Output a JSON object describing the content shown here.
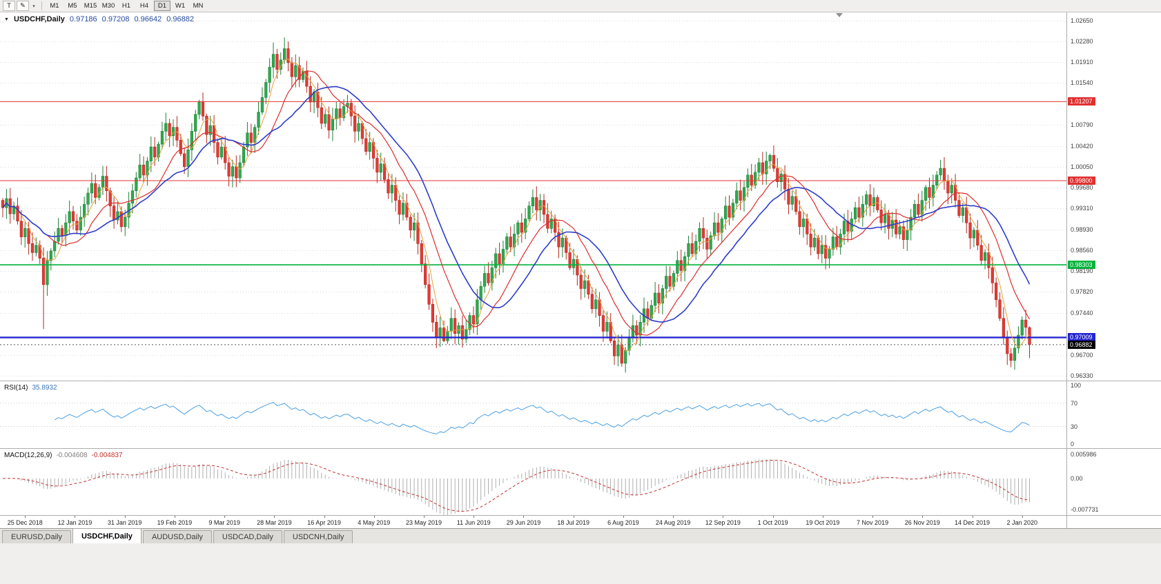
{
  "toolbar": {
    "tools": [
      {
        "glyph": "T",
        "name": "text-tool-button"
      },
      {
        "glyph": "✎",
        "name": "drawing-tools-button"
      },
      {
        "glyph": "▾",
        "name": "tools-dropdown-button"
      }
    ],
    "periods": [
      {
        "label": "M1"
      },
      {
        "label": "M5"
      },
      {
        "label": "M15"
      },
      {
        "label": "M30"
      },
      {
        "label": "H1"
      },
      {
        "label": "H4"
      },
      {
        "label": "D1",
        "active": true
      },
      {
        "label": "W1"
      },
      {
        "label": "MN"
      }
    ]
  },
  "chart": {
    "title": {
      "symbol": "USDCHF,Daily",
      "open": "0.97186",
      "high": "0.97208",
      "low": "0.96642",
      "close": "0.96882",
      "menu_icon": "▼"
    },
    "axis_labels": [
      "1.02650",
      "1.02280",
      "1.01910",
      "1.01540",
      "1.00790",
      "1.00420",
      "1.00050",
      "0.99680",
      "0.99310",
      "0.98930",
      "0.98560",
      "0.98190",
      "0.97820",
      "0.97440",
      "0.96700",
      "0.96330"
    ],
    "levels": [
      {
        "value": 1.01207,
        "label": "1.01207",
        "color": "#e03030",
        "width": 1
      },
      {
        "value": 0.998,
        "label": "0.99800",
        "color": "#e03030",
        "width": 1
      },
      {
        "value": 0.98303,
        "label": "0.98303",
        "color": "#00b43c",
        "width": 1.6
      },
      {
        "value": 0.97009,
        "label": "0.97009",
        "color": "#2525cf",
        "width": 2.4
      }
    ],
    "current_price": {
      "value": 0.96882,
      "label": "0.96882",
      "color": "#000000"
    },
    "moving_averages": [
      {
        "period": 5,
        "color": "#e8a23a",
        "width": 1
      },
      {
        "period": 13,
        "color": "#dd2c2c",
        "width": 1.2
      },
      {
        "period": 21,
        "color": "#2b3cc9",
        "width": 1.6
      }
    ],
    "indicators": {
      "rsi": {
        "label": "RSI(14)",
        "value": "35.8932",
        "period": 14,
        "levels_axis": [
          "100",
          "70",
          "30",
          "0"
        ],
        "grid": [
          70,
          30
        ],
        "color": "#4a9fe3"
      },
      "macd": {
        "label": "MACD(12,26,9)",
        "value_main": "-0.004608",
        "value_signal": "-0.004837",
        "fast": 12,
        "slow": 26,
        "signal": 9,
        "axis": [
          "0.005986",
          "0.00",
          "-0.007731"
        ]
      }
    }
  },
  "x_axis": {
    "labels": [
      "25 Dec 2018",
      "12 Jan 2019",
      "31 Jan 2019",
      "19 Feb 2019",
      "9 Mar 2019",
      "28 Mar 2019",
      "16 Apr 2019",
      "4 May 2019",
      "23 May 2019",
      "11 Jun 2019",
      "29 Jun 2019",
      "18 Jul 2019",
      "6 Aug 2019",
      "24 Aug 2019",
      "12 Sep 2019",
      "1 Oct 2019",
      "19 Oct 2019",
      "7 Nov 2019",
      "26 Nov 2019",
      "14 Dec 2019",
      "2 Jan 2020"
    ],
    "first_index": 6,
    "index_step": 13.45
  },
  "colors": {
    "up": "#2faa4e",
    "up_border": "#1d7f37",
    "down": "#e23b36",
    "down_border": "#b5271f",
    "grid": "#d9d9d9",
    "macd_hist": "#9a9a9a",
    "macd_signal": "#c23030",
    "axis_text": "#3d3d3d",
    "shift_marker": "#909090"
  },
  "tabs": [
    {
      "label": "EURUSD,Daily"
    },
    {
      "label": "USDCHF,Daily",
      "active": true
    },
    {
      "label": "AUDUSD,Daily"
    },
    {
      "label": "USDCAD,Daily"
    },
    {
      "label": "USDCNH,Daily"
    }
  ],
  "chart_data": {
    "type": "candlestick",
    "symbol": "USDCHF",
    "timeframe": "Daily",
    "first_open": 0.9945,
    "closes": [
      0.9932,
      0.9948,
      0.9921,
      0.9935,
      0.9908,
      0.988,
      0.9895,
      0.9868,
      0.9852,
      0.9865,
      0.9842,
      0.9795,
      0.9838,
      0.9855,
      0.9872,
      0.9895,
      0.9882,
      0.9905,
      0.9925,
      0.9908,
      0.9892,
      0.9915,
      0.9938,
      0.9958,
      0.9975,
      0.995,
      0.9968,
      0.9988,
      0.9962,
      0.9935,
      0.991,
      0.9925,
      0.9898,
      0.9915,
      0.994,
      0.9962,
      0.9985,
      1.0008,
      0.999,
      1.0015,
      1.004,
      1.0022,
      1.0045,
      1.0068,
      1.0082,
      1.006,
      1.0075,
      1.0052,
      1.0028,
      1.0005,
      1.0035,
      1.0068,
      1.0098,
      1.012,
      1.0095,
      1.0062,
      1.0078,
      1.0048,
      1.0022,
      1.004,
      1.0012,
      0.9988,
      1.0005,
      0.9985,
      1.0012,
      1.004,
      1.0065,
      1.0048,
      1.0075,
      1.0102,
      1.0128,
      1.0155,
      1.0182,
      1.0205,
      1.0178,
      1.0195,
      1.0215,
      1.019,
      1.0165,
      1.0185,
      1.016,
      1.0175,
      1.0148,
      1.012,
      1.0138,
      1.011,
      1.0082,
      1.0098,
      1.007,
      1.009,
      1.0108,
      1.0092,
      1.0112,
      1.0118,
      1.0095,
      1.0068,
      1.0082,
      1.0055,
      1.0032,
      1.0048,
      1.002,
      0.9995,
      1.001,
      0.9982,
      0.9958,
      0.9972,
      0.9945,
      0.992,
      0.994,
      0.9915,
      0.9892,
      0.9905,
      0.9868,
      0.9832,
      0.9795,
      0.976,
      0.9728,
      0.9702,
      0.9718,
      0.9695,
      0.9712,
      0.9735,
      0.9708,
      0.9722,
      0.9698,
      0.9715,
      0.974,
      0.9725,
      0.9768,
      0.9792,
      0.9815,
      0.9798,
      0.9825,
      0.985,
      0.9832,
      0.9858,
      0.988,
      0.9862,
      0.9885,
      0.9905,
      0.9888,
      0.9912,
      0.9935,
      0.995,
      0.9928,
      0.9945,
      0.992,
      0.9895,
      0.9912,
      0.9888,
      0.9862,
      0.9878,
      0.9852,
      0.9825,
      0.984,
      0.9812,
      0.9788,
      0.9802,
      0.9778,
      0.9752,
      0.9768,
      0.974,
      0.9712,
      0.9728,
      0.9695,
      0.9668,
      0.9688,
      0.9655,
      0.9678,
      0.97,
      0.9722,
      0.9705,
      0.9728,
      0.9752,
      0.9735,
      0.9758,
      0.978,
      0.9762,
      0.9788,
      0.981,
      0.9792,
      0.9815,
      0.9838,
      0.982,
      0.9845,
      0.9868,
      0.985,
      0.9872,
      0.9895,
      0.9878,
      0.9858,
      0.9882,
      0.9905,
      0.9888,
      0.9912,
      0.9935,
      0.9915,
      0.994,
      0.9962,
      0.9945,
      0.9968,
      0.999,
      0.9972,
      0.9995,
      1.0012,
      0.9992,
      1.0015,
      1.0025,
      1.0002,
      0.9978,
      0.9992,
      0.9965,
      0.9938,
      0.9952,
      0.9925,
      0.9898,
      0.9912,
      0.9885,
      0.9862,
      0.9878,
      0.985,
      0.9865,
      0.9842,
      0.9858,
      0.988,
      0.9862,
      0.9885,
      0.9908,
      0.989,
      0.9912,
      0.9932,
      0.9915,
      0.9938,
      0.9955,
      0.9935,
      0.995,
      0.9928,
      0.9905,
      0.992,
      0.9895,
      0.991,
      0.9885,
      0.9898,
      0.9875,
      0.9892,
      0.9915,
      0.9938,
      0.992,
      0.9945,
      0.9968,
      0.995,
      0.9972,
      0.999,
      1.0002,
      0.998,
      0.9958,
      0.9972,
      0.9945,
      0.9918,
      0.9932,
      0.9905,
      0.9878,
      0.9892,
      0.9865,
      0.9838,
      0.9852,
      0.9825,
      0.9798,
      0.9768,
      0.9735,
      0.97,
      0.9672,
      0.966,
      0.9682,
      0.9705,
      0.9732,
      0.9719,
      0.96882
    ],
    "overrides": [
      {
        "i": 11,
        "l": 0.9716
      },
      {
        "i": 53,
        "h": 1.0124
      },
      {
        "i": 73,
        "h": 1.0226
      },
      {
        "i": 92,
        "h": 1.0125
      },
      {
        "i": 119,
        "l": 0.9693
      },
      {
        "i": 165,
        "l": 0.9652
      },
      {
        "i": 167,
        "l": 0.9649
      },
      {
        "i": 207,
        "h": 1.0028
      },
      {
        "i": 271,
        "l": 0.9652
      },
      {
        "i": 272,
        "l": 0.9648
      },
      {
        "i": 277,
        "o": 0.97186,
        "h": 0.97208,
        "l": 0.96642,
        "c": 0.96882
      }
    ]
  }
}
